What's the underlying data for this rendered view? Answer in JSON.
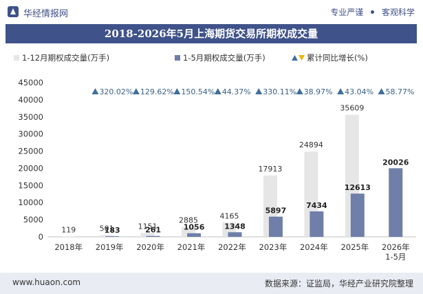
{
  "header": {
    "brand": "华经情报网",
    "slogan_left": "专业严谨",
    "slogan_right": "客观科学"
  },
  "title": "2018-2026年5月上海期货交易所期权成交量",
  "footer": {
    "website": "www.huaon.com",
    "source": "数据来源：证监局，华经产业研究院整理"
  },
  "colors": {
    "brand": "#3f5289",
    "full_year": "#e6e6e6",
    "jan_may": "#6f7fa9",
    "growth": "#3f6f9a",
    "growth_text": "#3a5f86"
  },
  "chart_data": {
    "type": "bar",
    "categories": [
      "2018年",
      "2019年",
      "2020年",
      "2021年",
      "2022年",
      "2023年",
      "2024年",
      "2025年",
      "2026年\n1-5月"
    ],
    "series": [
      {
        "name": "1-12月期权成交量(万手)",
        "values": [
          119,
          501,
          1151,
          2885,
          4165,
          17913,
          24894,
          35609,
          null
        ]
      },
      {
        "name": "1-5月期权成交量(万手)",
        "values": [
          null,
          183,
          261,
          1056,
          1348,
          5897,
          7434,
          12613,
          20026
        ]
      }
    ],
    "growth": {
      "name": "累计同比增长(%)",
      "values": [
        null,
        "320.02%",
        "129.62%",
        "150.54%",
        "44.37%",
        "330.11%",
        "38.97%",
        "43.04%",
        "58.77%"
      ]
    },
    "ylim": [
      0,
      45000
    ],
    "yticks": [
      0,
      5000,
      10000,
      15000,
      20000,
      25000,
      30000,
      35000,
      40000,
      45000
    ],
    "legend_position": "top",
    "grid": false
  }
}
